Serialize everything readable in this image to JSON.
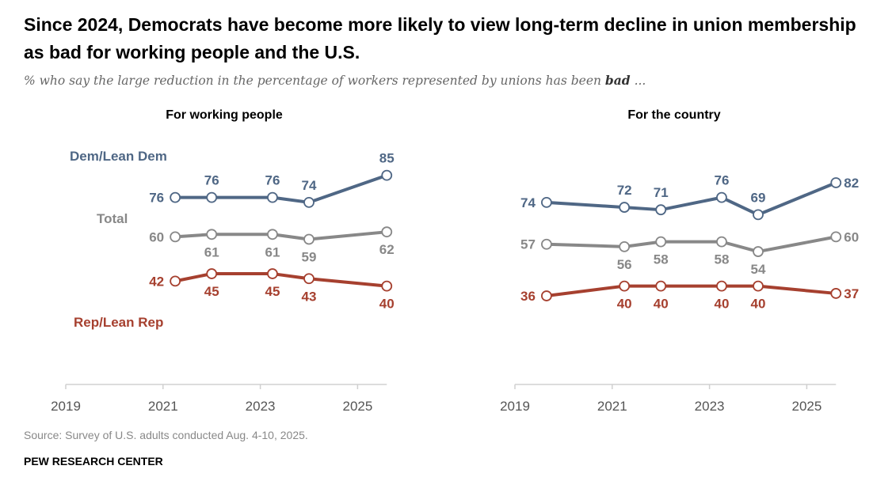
{
  "title": "Since 2024, Democrats have become more likely to view long-term decline in union membership as bad for working people and the U.S.",
  "subtitle_pre": "% who say the large reduction in the percentage of workers represented by unions has been ",
  "subtitle_bold": "bad",
  "subtitle_post": " ...",
  "source": "Source: Survey of U.S. adults conducted Aug. 4-10, 2025.",
  "brand": "PEW RESEARCH CENTER",
  "colors": {
    "dem": "#4f6785",
    "total": "#888888",
    "rep": "#a6402f"
  },
  "chart_data": [
    {
      "type": "line",
      "title": "For working people",
      "xticks": [
        "2019",
        "2021",
        "2023",
        "2025"
      ],
      "xlim": [
        2019,
        2025.6
      ],
      "ylim": [
        0,
        100
      ],
      "x": [
        2021.25,
        2022.0,
        2023.25,
        2024.0,
        2025.6
      ],
      "series": [
        {
          "name": "Dem/Lean Dem",
          "key": "dem",
          "values": [
            76,
            76,
            76,
            74,
            85
          ]
        },
        {
          "name": "Total",
          "key": "total",
          "values": [
            60,
            61,
            61,
            59,
            62
          ]
        },
        {
          "name": "Rep/Lean Rep",
          "key": "rep",
          "values": [
            42,
            45,
            45,
            43,
            40
          ]
        }
      ]
    },
    {
      "type": "line",
      "title": "For the country",
      "xticks": [
        "2019",
        "2021",
        "2023",
        "2025"
      ],
      "xlim": [
        2019,
        2025.6
      ],
      "ylim": [
        0,
        100
      ],
      "x": [
        2019.65,
        2021.25,
        2022.0,
        2023.25,
        2024.0,
        2025.6
      ],
      "series": [
        {
          "name": "Dem/Lean Dem",
          "key": "dem",
          "values": [
            74,
            72,
            71,
            76,
            69,
            82
          ]
        },
        {
          "name": "Total",
          "key": "total",
          "values": [
            57,
            56,
            58,
            58,
            54,
            60
          ]
        },
        {
          "name": "Rep/Lean Rep",
          "key": "rep",
          "values": [
            36,
            40,
            40,
            40,
            40,
            37
          ]
        }
      ]
    }
  ]
}
